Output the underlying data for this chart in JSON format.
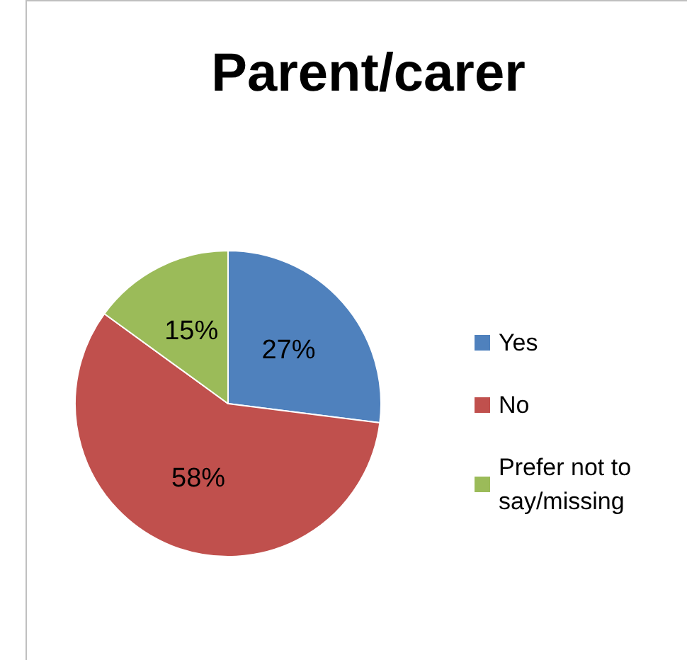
{
  "chart_data": {
    "type": "pie",
    "title": "Parent/carer",
    "categories": [
      "Yes",
      "No",
      "Prefer not to say/missing"
    ],
    "values": [
      27,
      58,
      15
    ],
    "colors": [
      "#4f81bd",
      "#c0504d",
      "#9bbb59"
    ],
    "value_labels": [
      "27%",
      "58%",
      "15%"
    ],
    "legend": "right"
  }
}
